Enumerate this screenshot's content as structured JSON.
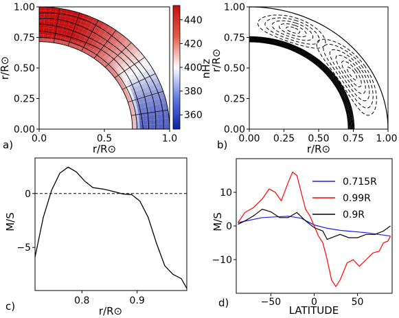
{
  "panels": {
    "a": {
      "letter": "a)",
      "xlabel": "r/R⊙",
      "ylabel": "r/R⊙",
      "xticks": [
        "0.0",
        "0.5",
        "1.0"
      ],
      "yticks": [
        "1.00",
        "0.75",
        "0.50",
        "0.25",
        "0.00"
      ],
      "colorbar_label": "nHz",
      "colorbar_ticks": [
        "440",
        "420",
        "400",
        "380",
        "360"
      ],
      "colorbar_range": [
        348,
        452
      ]
    },
    "b": {
      "letter": "b)",
      "xlabel": "r/R⊙",
      "ylabel": "r/R⊙",
      "xticks": [
        "0.00",
        "0.25",
        "0.50",
        "0.75",
        "1.00"
      ],
      "yticks": [
        "1.00",
        "0.75",
        "0.50",
        "0.25",
        "0.00"
      ]
    },
    "c": {
      "letter": "c)",
      "xlabel": "r/R⊙",
      "ylabel": "M/S",
      "xticks": [
        "0.8",
        "0.9"
      ],
      "yticks": [
        "0",
        "−5"
      ]
    },
    "d": {
      "letter": "d)",
      "xlabel": "LATITUDE",
      "ylabel": "M/S",
      "xticks": [
        "−50",
        "0",
        "50"
      ],
      "yticks": [
        "10",
        "0",
        "−10"
      ]
    }
  },
  "chart_data": [
    {
      "type": "heatmap",
      "panel": "a",
      "description_of_field": "rotation rate",
      "x_range": [
        0,
        1
      ],
      "y_range": [
        0,
        1
      ],
      "r_inner": 0.715,
      "color_scale": {
        "min": 350,
        "max": 450,
        "low_color": "#0b1fa8",
        "mid_color": "#ffffff",
        "high_color": "#c41010"
      }
    },
    {
      "type": "line",
      "panel": "b",
      "x_range": [
        0,
        1
      ],
      "y_range": [
        0,
        1
      ],
      "r_inner": 0.715
    },
    {
      "type": "line",
      "panel": "c",
      "xlim": [
        0.715,
        0.99
      ],
      "ylim": [
        -9,
        3.3
      ],
      "reference_line": 0,
      "series": [
        {
          "x": [
            0.715,
            0.73,
            0.745,
            0.76,
            0.775,
            0.79,
            0.805,
            0.82,
            0.84,
            0.86,
            0.875,
            0.89,
            0.905,
            0.92,
            0.935,
            0.95,
            0.965,
            0.98,
            0.99
          ],
          "y": [
            -5.9,
            -2.2,
            0.3,
            1.9,
            2.45,
            2.0,
            1.15,
            0.55,
            0.4,
            0.15,
            -0.05,
            -0.1,
            -0.7,
            -2.2,
            -4.6,
            -6.7,
            -7.5,
            -7.9,
            -8.8
          ]
        }
      ]
    },
    {
      "type": "line",
      "panel": "d",
      "xlim": [
        -90,
        90
      ],
      "ylim": [
        -20,
        20
      ],
      "series": [
        {
          "name": "0.715R",
          "color": "#1a1aff",
          "x": [
            -88,
            -60,
            -30,
            -15,
            0,
            15,
            30,
            60,
            88
          ],
          "y": [
            1.0,
            2.5,
            2.9,
            2.3,
            0.3,
            -0.7,
            -1.3,
            -2.0,
            -3.0
          ]
        },
        {
          "name": "0.99R",
          "color": "#ff0000",
          "x": [
            -88,
            -80,
            -70,
            -60,
            -52,
            -45,
            -38,
            -30,
            -25,
            -20,
            -15,
            -10,
            -5,
            0,
            5,
            10,
            15,
            20,
            25,
            30,
            38,
            45,
            52,
            60,
            68,
            75,
            80,
            85,
            88
          ],
          "y": [
            1.0,
            4.0,
            5.5,
            8.0,
            11.0,
            10.0,
            7.5,
            13.0,
            16.0,
            15.0,
            10.0,
            5.0,
            3.0,
            0.0,
            -3.0,
            -5.0,
            -10.0,
            -16.0,
            -18.0,
            -16.0,
            -11.0,
            -10.0,
            -12.0,
            -10.0,
            -8.0,
            -7.5,
            -5.0,
            -4.5,
            -3.0
          ]
        },
        {
          "name": "0.9R",
          "color": "#000000",
          "x": [
            -88,
            -80,
            -70,
            -60,
            -50,
            -40,
            -30,
            -20,
            -10,
            0,
            5,
            10,
            15,
            20,
            30,
            40,
            50,
            60,
            70,
            80,
            88
          ],
          "y": [
            0.5,
            1.5,
            3.0,
            5.0,
            4.2,
            2.5,
            2.5,
            4.0,
            1.5,
            -0.5,
            -1.0,
            -1.5,
            -4.0,
            -3.5,
            -2.5,
            -3.5,
            -3.5,
            -2.5,
            -2.5,
            -1.5,
            0.0
          ]
        }
      ],
      "legend_position": "top-right"
    }
  ]
}
